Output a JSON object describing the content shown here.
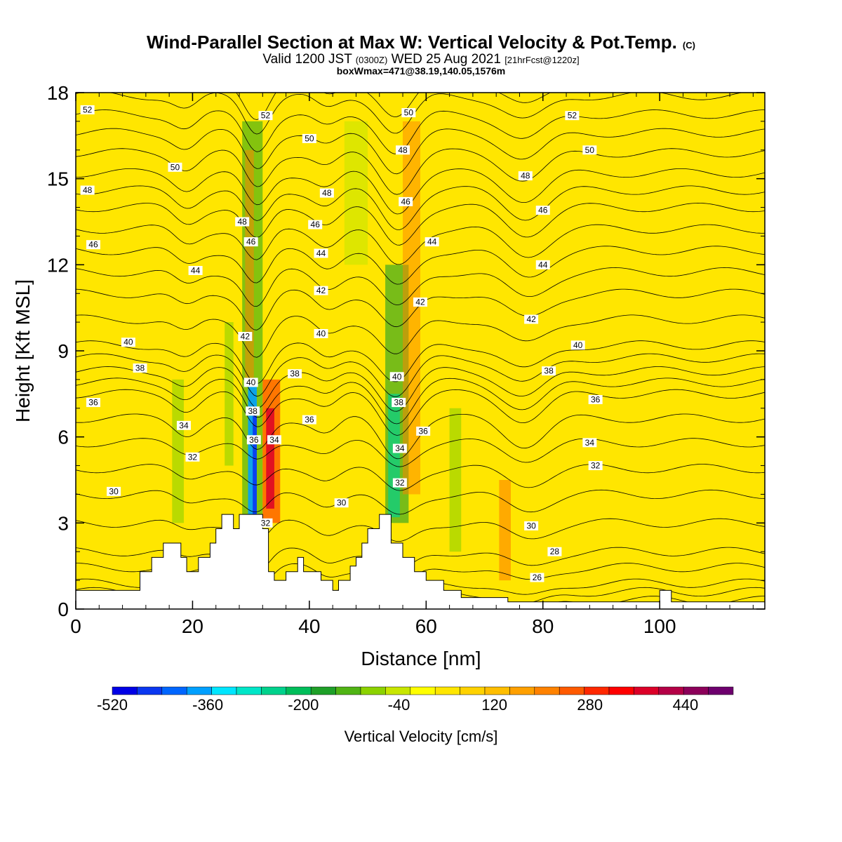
{
  "chart_data": {
    "type": "contour",
    "title": {
      "main": "Wind-Parallel Section at Max W: Vertical Velocity & Pot.Temp.",
      "main_tag": "(C)",
      "valid_prefix": "Valid 1200 JST",
      "valid_z": "(0300Z)",
      "valid_date": "WED 25 Aug 2021",
      "fcst": "[21hrFcst@1220z]",
      "box": "boxWmax=471@38.19,140.05,1576m"
    },
    "xlabel": "Distance [nm]",
    "ylabel": "Height [Kft MSL]",
    "xlim": [
      0,
      118
    ],
    "ylim": [
      0,
      18
    ],
    "x_ticks": [
      "0",
      "20",
      "40",
      "60",
      "80",
      "100"
    ],
    "y_ticks": [
      "0",
      "3",
      "6",
      "9",
      "12",
      "15",
      "18"
    ],
    "colorbar": {
      "title": "Vertical Velocity [cm/s]",
      "range": [
        -520,
        520
      ],
      "labels": [
        "-520",
        "-360",
        "-200",
        "-40",
        "120",
        "280",
        "440"
      ],
      "colors": [
        "#0000e6",
        "#0a37f0",
        "#0066ff",
        "#00a0ff",
        "#00e6ff",
        "#00e6c8",
        "#00d28c",
        "#00be5a",
        "#1ea028",
        "#50b414",
        "#8cd200",
        "#c8e600",
        "#ffff00",
        "#ffe600",
        "#ffd200",
        "#ffbe00",
        "#ffa000",
        "#ff8200",
        "#ff5a00",
        "#ff2800",
        "#ff0000",
        "#dc0028",
        "#b40046",
        "#8c005a",
        "#6e006e"
      ]
    },
    "terrain": [
      [
        0,
        0.65
      ],
      [
        11,
        0.65
      ],
      [
        11,
        1.3
      ],
      [
        13,
        1.3
      ],
      [
        13,
        1.8
      ],
      [
        15,
        1.8
      ],
      [
        15,
        2.3
      ],
      [
        18,
        2.3
      ],
      [
        18,
        1.8
      ],
      [
        19,
        1.8
      ],
      [
        19,
        1.3
      ],
      [
        21,
        1.3
      ],
      [
        21,
        1.8
      ],
      [
        23,
        1.8
      ],
      [
        23,
        2.3
      ],
      [
        24,
        2.3
      ],
      [
        24,
        2.8
      ],
      [
        25,
        2.8
      ],
      [
        25,
        3.3
      ],
      [
        27,
        3.3
      ],
      [
        27,
        2.8
      ],
      [
        28,
        2.8
      ],
      [
        28,
        3.3
      ],
      [
        32,
        3.3
      ],
      [
        32,
        2.8
      ],
      [
        33,
        2.8
      ],
      [
        33,
        1.3
      ],
      [
        34,
        1.3
      ],
      [
        34,
        1.0
      ],
      [
        36,
        1.0
      ],
      [
        36,
        1.3
      ],
      [
        38,
        1.3
      ],
      [
        38,
        1.8
      ],
      [
        39,
        1.8
      ],
      [
        39,
        1.3
      ],
      [
        42,
        1.3
      ],
      [
        42,
        1.0
      ],
      [
        44,
        1.0
      ],
      [
        44,
        0.65
      ],
      [
        45,
        0.65
      ],
      [
        45,
        1.0
      ],
      [
        47,
        1.0
      ],
      [
        47,
        1.5
      ],
      [
        48,
        1.5
      ],
      [
        48,
        1.8
      ],
      [
        49,
        1.8
      ],
      [
        49,
        2.3
      ],
      [
        50,
        2.3
      ],
      [
        50,
        2.8
      ],
      [
        52,
        2.8
      ],
      [
        52,
        3.3
      ],
      [
        54,
        3.3
      ],
      [
        54,
        2.3
      ],
      [
        56,
        2.3
      ],
      [
        56,
        1.8
      ],
      [
        58,
        1.8
      ],
      [
        58,
        1.3
      ],
      [
        60,
        1.3
      ],
      [
        60,
        1.0
      ],
      [
        63,
        1.0
      ],
      [
        63,
        0.65
      ],
      [
        66,
        0.65
      ],
      [
        66,
        0.4
      ],
      [
        74,
        0.4
      ],
      [
        74,
        0.25
      ],
      [
        100,
        0.25
      ],
      [
        100,
        0.65
      ],
      [
        102,
        0.65
      ],
      [
        102,
        0.25
      ],
      [
        118,
        0.25
      ]
    ],
    "theta_levels": [
      26,
      28,
      30,
      32,
      34,
      36,
      38,
      40,
      42,
      44,
      46,
      48,
      50,
      52
    ],
    "theta_profile_base_kft": [
      0.3,
      0.9,
      2.0,
      4.0,
      5.8,
      7.5,
      8.3,
      9.2,
      11.0,
      12.5,
      14.0,
      15.2,
      16.6,
      17.9
    ],
    "contour_labels": [
      {
        "x": 2,
        "y": 17.4,
        "text": "52"
      },
      {
        "x": 2,
        "y": 14.6,
        "text": "48"
      },
      {
        "x": 3,
        "y": 12.7,
        "text": "46"
      },
      {
        "x": 9,
        "y": 9.3,
        "text": "40"
      },
      {
        "x": 11,
        "y": 8.4,
        "text": "38"
      },
      {
        "x": 3,
        "y": 7.2,
        "text": "36"
      },
      {
        "x": 6.5,
        "y": 4.1,
        "text": "30"
      },
      {
        "x": 17,
        "y": 15.4,
        "text": "50"
      },
      {
        "x": 20.5,
        "y": 11.8,
        "text": "44"
      },
      {
        "x": 18.5,
        "y": 6.4,
        "text": "34"
      },
      {
        "x": 20,
        "y": 5.3,
        "text": "32"
      },
      {
        "x": 28.5,
        "y": 13.5,
        "text": "48"
      },
      {
        "x": 30,
        "y": 12.8,
        "text": "46"
      },
      {
        "x": 32.5,
        "y": 17.2,
        "text": "52"
      },
      {
        "x": 29,
        "y": 9.5,
        "text": "42"
      },
      {
        "x": 30,
        "y": 7.9,
        "text": "40"
      },
      {
        "x": 30.3,
        "y": 6.9,
        "text": "38"
      },
      {
        "x": 30.5,
        "y": 5.9,
        "text": "36"
      },
      {
        "x": 34,
        "y": 5.9,
        "text": "34"
      },
      {
        "x": 32.5,
        "y": 3.0,
        "text": "32"
      },
      {
        "x": 37.5,
        "y": 8.2,
        "text": "38"
      },
      {
        "x": 40,
        "y": 6.6,
        "text": "36"
      },
      {
        "x": 40,
        "y": 16.4,
        "text": "50"
      },
      {
        "x": 43,
        "y": 14.5,
        "text": "48"
      },
      {
        "x": 41,
        "y": 13.4,
        "text": "46"
      },
      {
        "x": 42,
        "y": 12.4,
        "text": "44"
      },
      {
        "x": 42,
        "y": 11.1,
        "text": "42"
      },
      {
        "x": 42,
        "y": 9.6,
        "text": "40"
      },
      {
        "x": 45.5,
        "y": 3.7,
        "text": "30"
      },
      {
        "x": 57,
        "y": 17.3,
        "text": "50"
      },
      {
        "x": 56,
        "y": 16.0,
        "text": "48"
      },
      {
        "x": 56.5,
        "y": 14.2,
        "text": "46"
      },
      {
        "x": 61,
        "y": 12.8,
        "text": "44"
      },
      {
        "x": 59,
        "y": 10.7,
        "text": "42"
      },
      {
        "x": 55,
        "y": 8.1,
        "text": "40"
      },
      {
        "x": 55.3,
        "y": 7.2,
        "text": "38"
      },
      {
        "x": 59.5,
        "y": 6.2,
        "text": "36"
      },
      {
        "x": 55.5,
        "y": 5.6,
        "text": "34"
      },
      {
        "x": 55.5,
        "y": 4.4,
        "text": "32"
      },
      {
        "x": 77,
        "y": 15.1,
        "text": "48"
      },
      {
        "x": 80,
        "y": 13.9,
        "text": "46"
      },
      {
        "x": 80,
        "y": 12.0,
        "text": "44"
      },
      {
        "x": 78,
        "y": 10.1,
        "text": "42"
      },
      {
        "x": 86,
        "y": 9.2,
        "text": "40"
      },
      {
        "x": 81,
        "y": 8.3,
        "text": "38"
      },
      {
        "x": 89,
        "y": 7.3,
        "text": "36"
      },
      {
        "x": 88,
        "y": 5.8,
        "text": "34"
      },
      {
        "x": 89,
        "y": 5.0,
        "text": "32"
      },
      {
        "x": 78,
        "y": 2.9,
        "text": "30"
      },
      {
        "x": 82,
        "y": 2.0,
        "text": "28"
      },
      {
        "x": 79,
        "y": 1.1,
        "text": "26"
      },
      {
        "x": 85,
        "y": 17.2,
        "text": "52"
      },
      {
        "x": 88,
        "y": 16.0,
        "text": "50"
      }
    ]
  }
}
